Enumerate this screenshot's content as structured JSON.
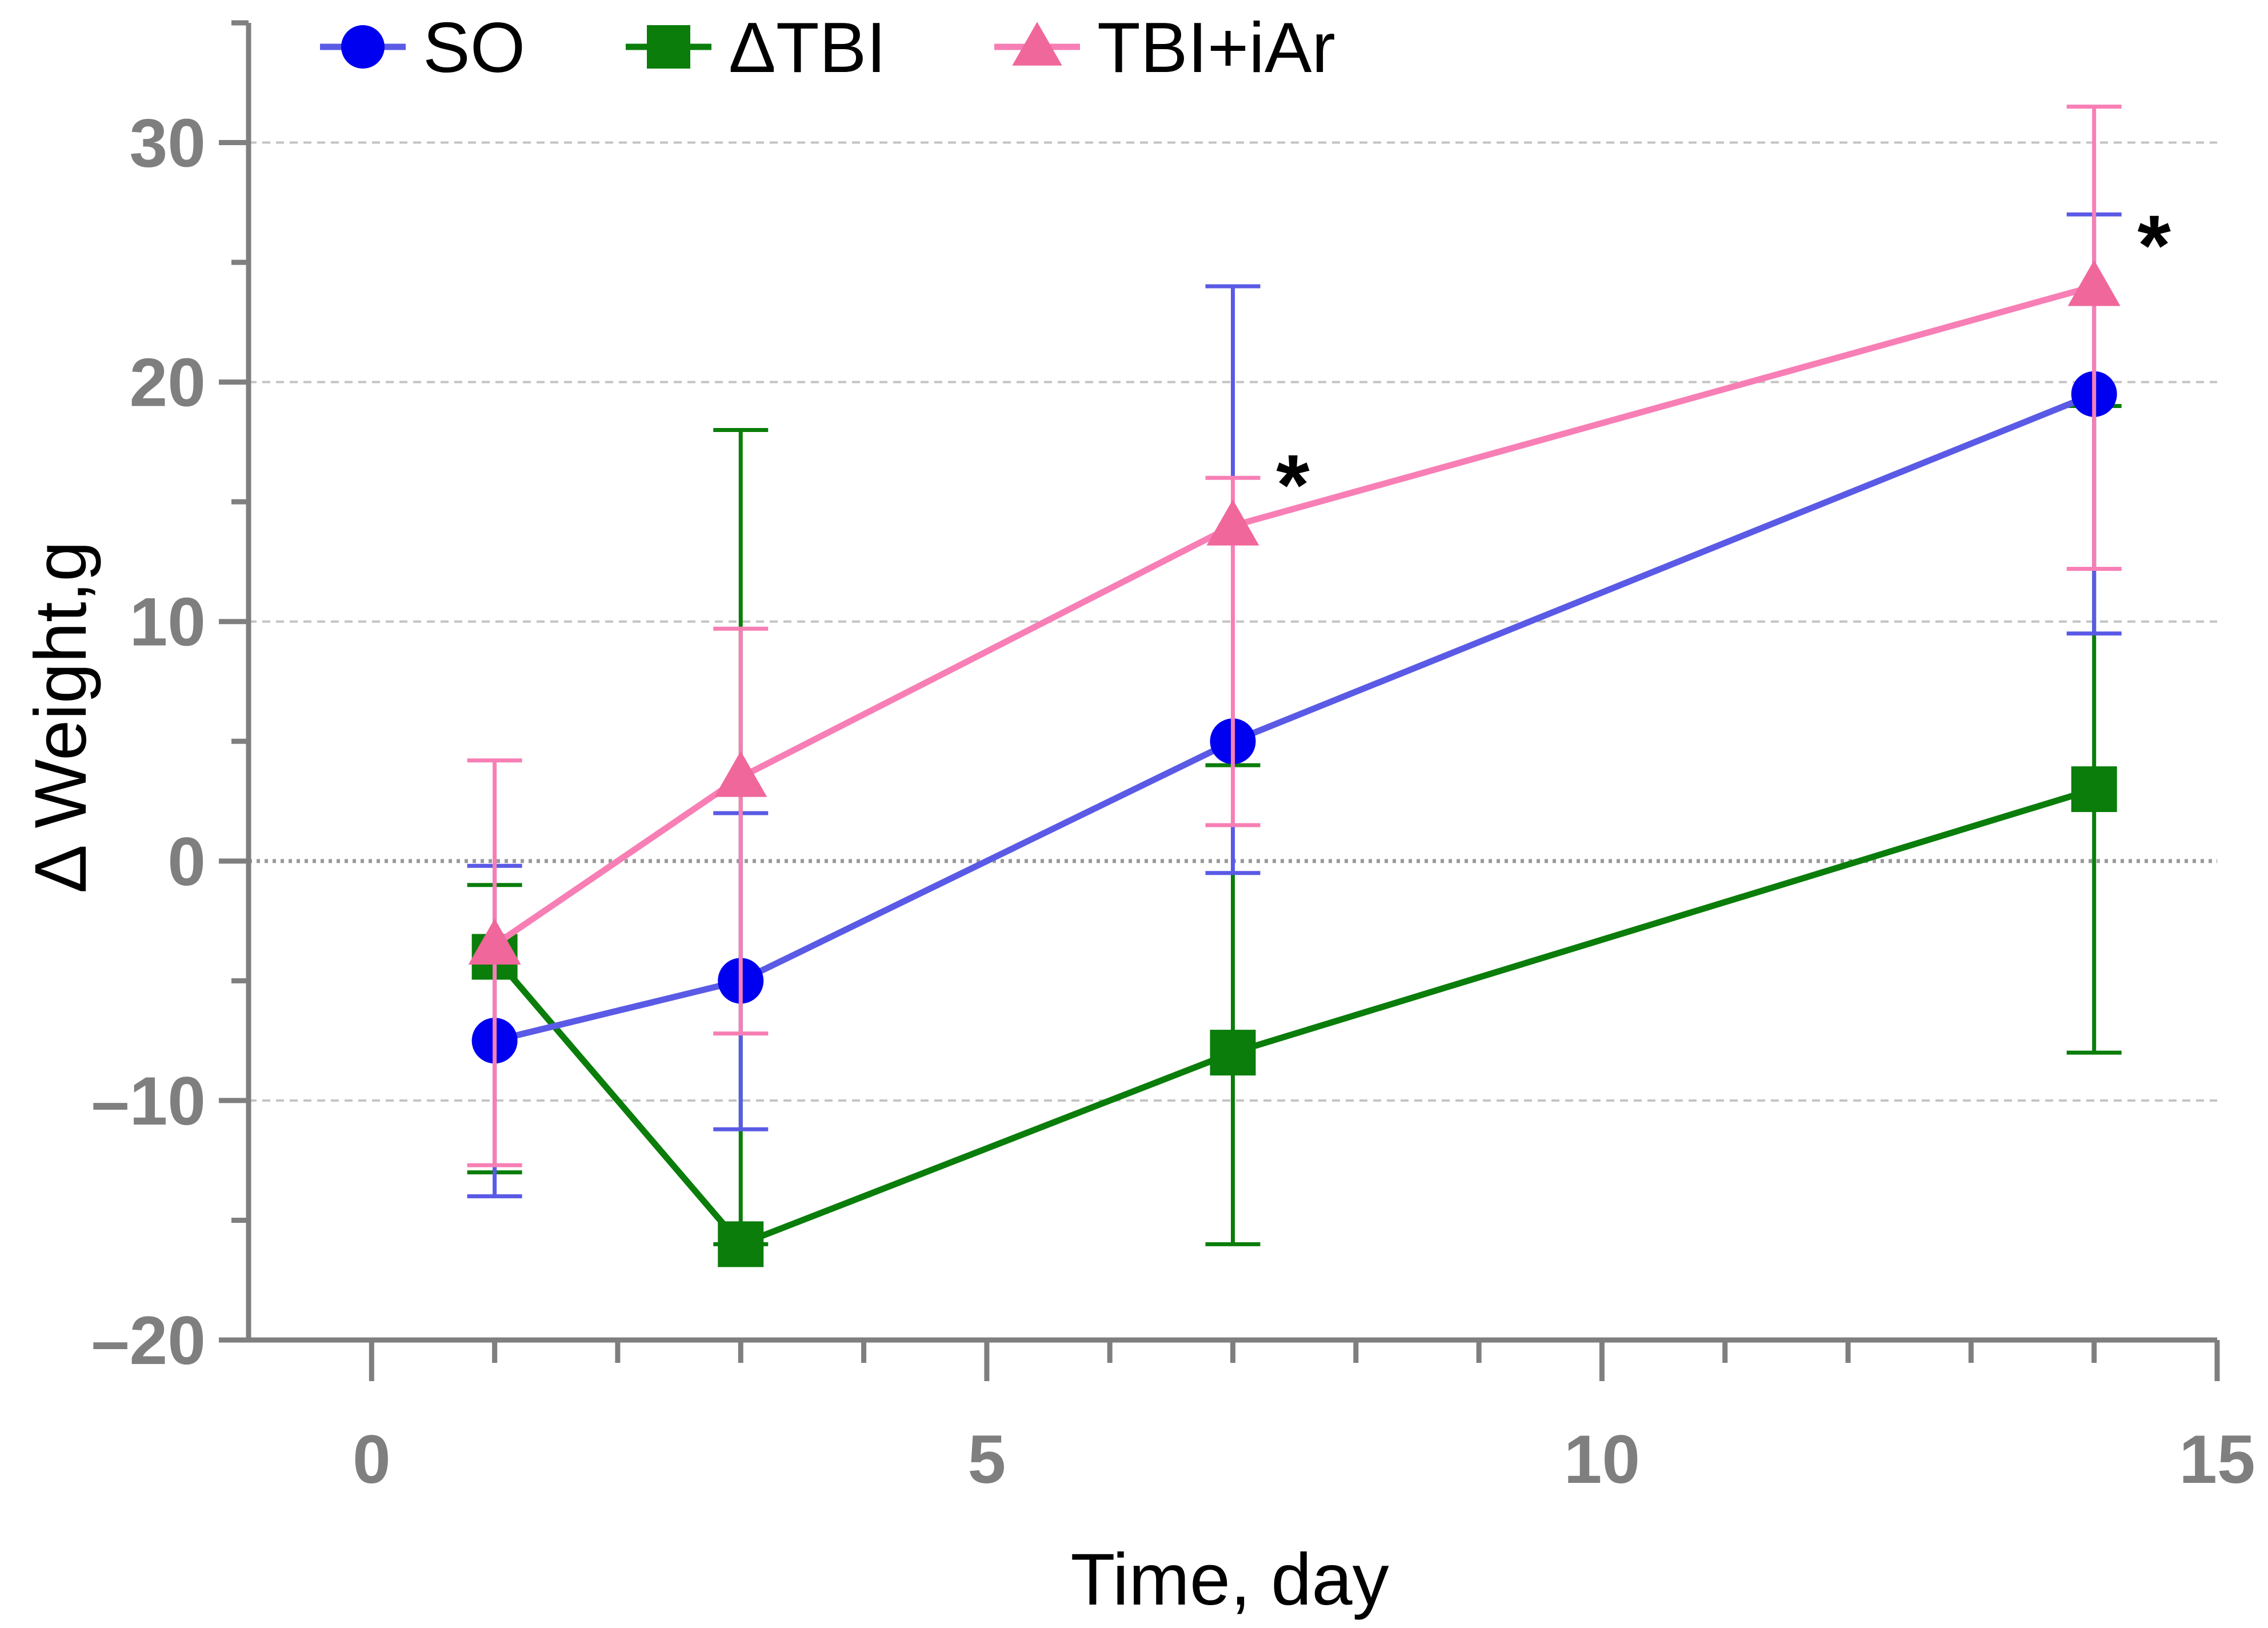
{
  "chart_data": {
    "type": "line",
    "title": "",
    "xlabel": "Time, day",
    "ylabel": "Δ Weight,g",
    "xlim": [
      -1,
      15
    ],
    "ylim": [
      -20,
      35
    ],
    "x_ticks": [
      0,
      5,
      10,
      15
    ],
    "x_tick_labels": [
      "0",
      "5",
      "10",
      "15"
    ],
    "x_minor_step": 1,
    "y_ticks": [
      -20,
      -10,
      0,
      10,
      20,
      30
    ],
    "y_tick_labels": [
      "–20",
      "–10",
      "0",
      "10",
      "20",
      "30"
    ],
    "y_minor_step": 5,
    "grid": true,
    "legend_position": "top",
    "series": [
      {
        "name": "SO",
        "color": "#5a5ae6",
        "marker_color": "#0000f0",
        "marker": "circle",
        "x": [
          1,
          3,
          7,
          14
        ],
        "values": [
          -7.5,
          -5,
          5,
          19.5
        ],
        "err_low": [
          -14,
          -11.2,
          -0.5,
          9.5
        ],
        "err_high": [
          -0.2,
          2,
          24,
          27
        ]
      },
      {
        "name": "ΔTBI",
        "color": "#0a7d0a",
        "marker_color": "#0a7d0a",
        "marker": "square",
        "x": [
          1,
          3,
          7,
          14
        ],
        "values": [
          -4,
          -16,
          -8,
          3
        ],
        "err_low": [
          -13,
          -16,
          -16,
          -8
        ],
        "err_high": [
          -1,
          18,
          4,
          19
        ]
      },
      {
        "name": "TBI+iAr",
        "color": "#f77fb5",
        "marker_color": "#f0679c",
        "marker": "triangle",
        "x": [
          1,
          3,
          7,
          14
        ],
        "values": [
          -3.5,
          3.5,
          14,
          24
        ],
        "err_low": [
          -12.7,
          -7.2,
          1.5,
          12.2
        ],
        "err_high": [
          4.2,
          9.7,
          16,
          31.5
        ]
      }
    ],
    "annotations": [
      {
        "text": "*",
        "x": 7,
        "y": 14
      },
      {
        "text": "*",
        "x": 14,
        "y": 24
      }
    ]
  }
}
